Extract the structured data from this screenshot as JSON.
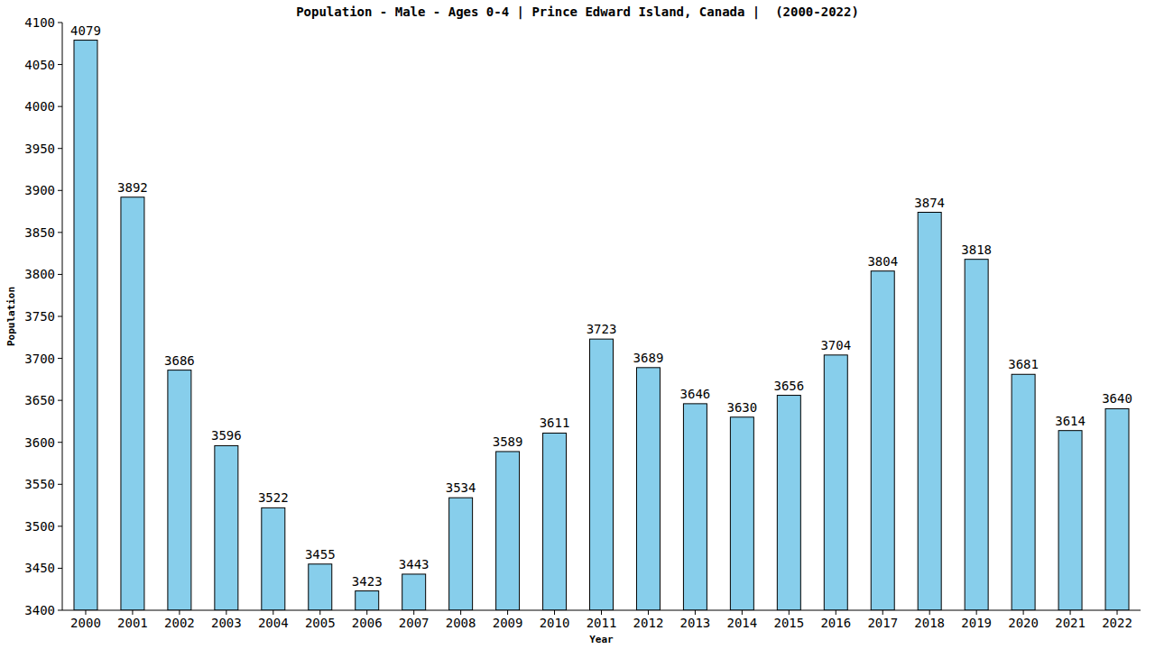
{
  "chart_data": {
    "type": "bar",
    "title": "Population - Male - Ages 0-4 | Prince Edward Island, Canada |  (2000-2022)",
    "x_label": "Year",
    "y_label": "Population",
    "categories": [
      "2000",
      "2001",
      "2002",
      "2003",
      "2004",
      "2005",
      "2006",
      "2007",
      "2008",
      "2009",
      "2010",
      "2011",
      "2012",
      "2013",
      "2014",
      "2015",
      "2016",
      "2017",
      "2018",
      "2019",
      "2020",
      "2021",
      "2022"
    ],
    "values": [
      4079,
      3892,
      3686,
      3596,
      3522,
      3455,
      3423,
      3443,
      3534,
      3589,
      3611,
      3723,
      3689,
      3646,
      3630,
      3656,
      3704,
      3804,
      3874,
      3818,
      3681,
      3614,
      3640
    ],
    "color": "#87ceeb",
    "ylim": [
      3400,
      4100
    ],
    "yticks": [
      3400,
      3450,
      3500,
      3550,
      3600,
      3650,
      3700,
      3750,
      3800,
      3850,
      3900,
      3950,
      4000,
      4050,
      4100
    ],
    "grid": false,
    "data_labels": true
  }
}
